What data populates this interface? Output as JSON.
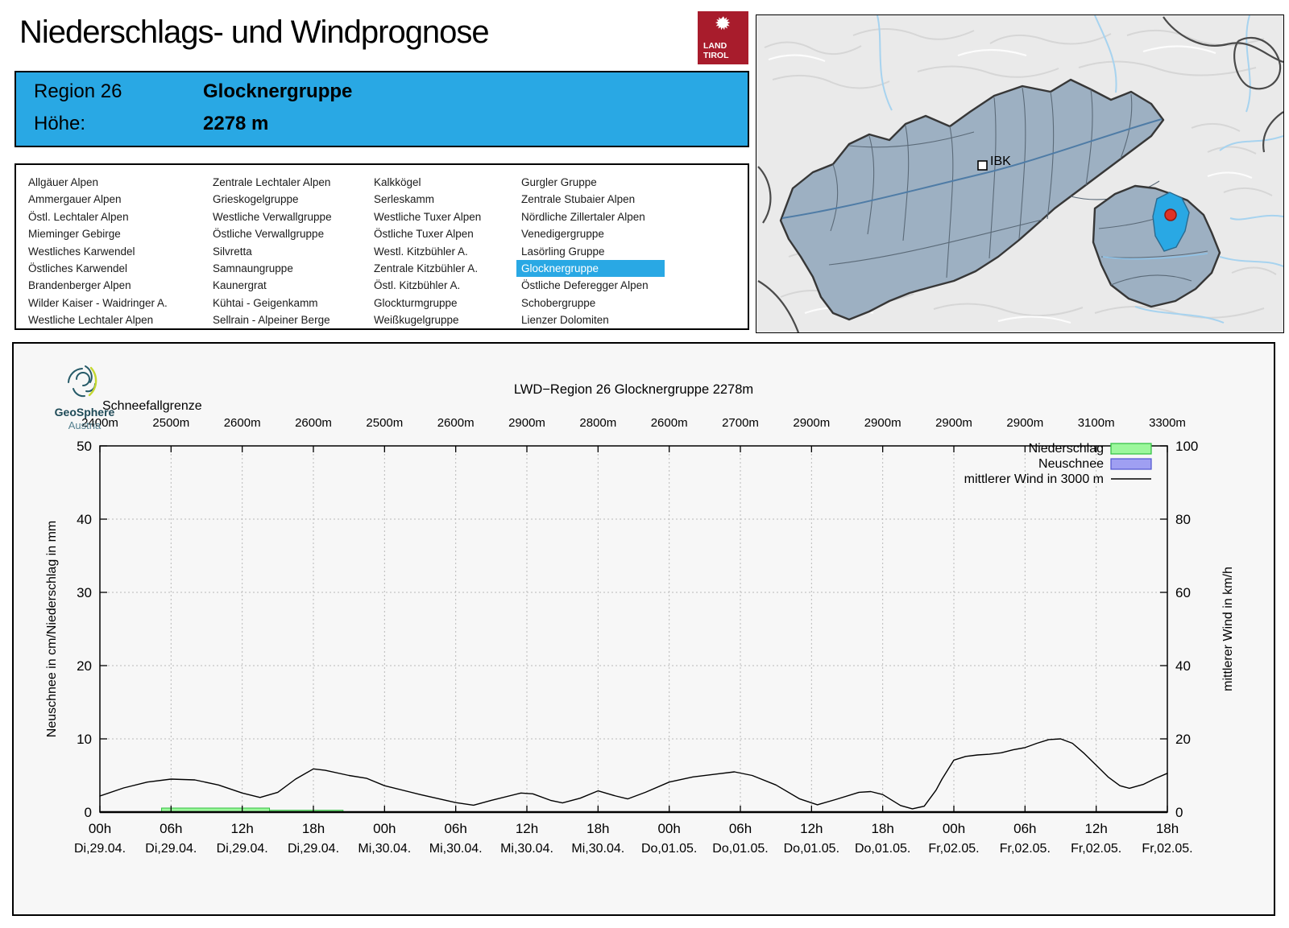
{
  "page": {
    "title": "Niederschlags- und Windprognose"
  },
  "tirol_logo": {
    "line1": "LAND",
    "line2": "TIROL",
    "color": "#a81c2c"
  },
  "header": {
    "region_label": "Region 26",
    "region_name": "Glocknergruppe",
    "altitude_label": "Höhe:",
    "altitude_value": "2278 m",
    "bg_color": "#29a8e4"
  },
  "region_list": {
    "selected": "Glocknergruppe",
    "columns": [
      [
        "Allgäuer Alpen",
        "Ammergauer Alpen",
        "Östl. Lechtaler Alpen",
        "Mieminger Gebirge",
        "Westliches Karwendel",
        "Östliches Karwendel",
        "Brandenberger Alpen",
        "Wilder Kaiser - Waidringer A.",
        "Westliche Lechtaler Alpen"
      ],
      [
        "Zentrale Lechtaler Alpen",
        "Grieskogelgruppe",
        "Westliche Verwallgruppe",
        "Östliche Verwallgruppe",
        "Silvretta",
        "Samnaungruppe",
        "Kaunergrat",
        "Kühtai - Geigenkamm",
        "Sellrain - Alpeiner Berge"
      ],
      [
        "Kalkkögel",
        "Serleskamm",
        "Westliche Tuxer Alpen",
        "Östliche Tuxer Alpen",
        "Westl. Kitzbühler A.",
        "Zentrale Kitzbühler A.",
        "Östl. Kitzbühler A.",
        "Glockturmgruppe",
        "Weißkugelgruppe"
      ],
      [
        "Gurgler Gruppe",
        "Zentrale Stubaier Alpen",
        "Nördliche Zillertaler Alpen",
        "Venedigergruppe",
        "Lasörling Gruppe",
        "Glocknergruppe",
        "Östliche Deferegger Alpen",
        "Schobergruppe",
        "Lienzer Dolomiten"
      ]
    ]
  },
  "map": {
    "city_label": "IBK",
    "region_fill": "#9db0c2",
    "selected_fill": "#29a8e4",
    "marker_color": "#df3226"
  },
  "geosphere": {
    "name": "GeoSphere",
    "country": "Austria"
  },
  "chart_data": {
    "type": "line",
    "title": "LWD−Region 26 Glocknergruppe 2278m",
    "snowline_label": "Schneefallgrenze",
    "snowline_values": [
      "2400m",
      "2500m",
      "2600m",
      "2600m",
      "2500m",
      "2600m",
      "2900m",
      "2800m",
      "2600m",
      "2700m",
      "2900m",
      "2900m",
      "2900m",
      "2900m",
      "3100m",
      "3300m"
    ],
    "ylabel_left": "Neuschnee in cm/Niederschlag in mm",
    "ylabel_right": "mittlerer Wind in km/h",
    "ylim_left": [
      0,
      50
    ],
    "ylim_right": [
      0,
      100
    ],
    "yticks_left": [
      0,
      10,
      20,
      30,
      40,
      50
    ],
    "yticks_right": [
      0,
      20,
      40,
      60,
      80,
      100
    ],
    "x_hours_span": [
      0,
      90
    ],
    "xtick_hours": [
      0,
      6,
      12,
      18,
      24,
      30,
      36,
      42,
      48,
      54,
      60,
      66,
      72,
      78,
      84,
      90
    ],
    "xtick_times": [
      "00h",
      "06h",
      "12h",
      "18h",
      "00h",
      "06h",
      "12h",
      "18h",
      "00h",
      "06h",
      "12h",
      "18h",
      "00h",
      "06h",
      "12h",
      "18h"
    ],
    "xtick_dates": [
      "Di,29.04.",
      "Di,29.04.",
      "Di,29.04.",
      "Di,29.04.",
      "Mi,30.04.",
      "Mi,30.04.",
      "Mi,30.04.",
      "Mi,30.04.",
      "Do,01.05.",
      "Do,01.05.",
      "Do,01.05.",
      "Do,01.05.",
      "Fr,02.05.",
      "Fr,02.05.",
      "Fr,02.05.",
      "Fr,02.05."
    ],
    "legend": [
      {
        "label": "Niederschlag",
        "type": "box",
        "fill": "#9cf79c",
        "border": "#2fbf3f"
      },
      {
        "label": "Neuschnee",
        "type": "box",
        "fill": "#9f9ff2",
        "border": "#5055d0"
      },
      {
        "label": "mittlerer Wind in 3000 m",
        "type": "line",
        "color": "#000000"
      }
    ],
    "grid": true,
    "wind_series": {
      "name": "mittlerer Wind in 3000 m",
      "unit": "km/h",
      "x_hours": [
        0,
        2,
        4,
        6,
        8,
        10,
        12,
        13.5,
        15,
        16.5,
        18,
        19,
        21,
        22.5,
        24,
        27,
        30,
        31.5,
        33,
        35.5,
        36.5,
        38,
        39,
        40.5,
        42,
        43.5,
        44.5,
        46,
        48,
        50,
        52,
        53.5,
        55,
        57,
        59,
        60.5,
        62,
        64,
        65,
        66,
        67.5,
        68.5,
        69.5,
        70.5,
        71,
        72,
        73,
        74,
        75,
        76,
        77,
        78,
        79,
        80,
        81,
        82,
        83,
        84,
        85,
        86,
        86.8,
        88,
        89,
        90
      ],
      "kmh": [
        4.4,
        6.6,
        8.2,
        9,
        8.8,
        7.4,
        5.2,
        4,
        5.4,
        9,
        11.8,
        11.4,
        10,
        9.2,
        7.2,
        4.8,
        2.6,
        1.9,
        3.2,
        5.2,
        5,
        3.2,
        2.5,
        3.8,
        5.8,
        4.4,
        3.6,
        5.4,
        8.2,
        9.6,
        10.4,
        11,
        10,
        7.4,
        3.6,
        2,
        3.4,
        5.4,
        5.6,
        4.8,
        1.8,
        0.9,
        1.6,
        6,
        9,
        14.2,
        15.2,
        15.6,
        15.8,
        16.2,
        17,
        17.6,
        18.8,
        19.8,
        20,
        18.8,
        16,
        12.8,
        9.6,
        7.2,
        6.5,
        7.6,
        9.2,
        10.6
      ]
    },
    "precip_bars_mm": [
      {
        "from_h": 5.2,
        "to_h": 14.3,
        "value": 0.55
      },
      {
        "from_h": 14.3,
        "to_h": 20.5,
        "value": 0.25
      }
    ],
    "neuschnee_bars_cm": []
  }
}
